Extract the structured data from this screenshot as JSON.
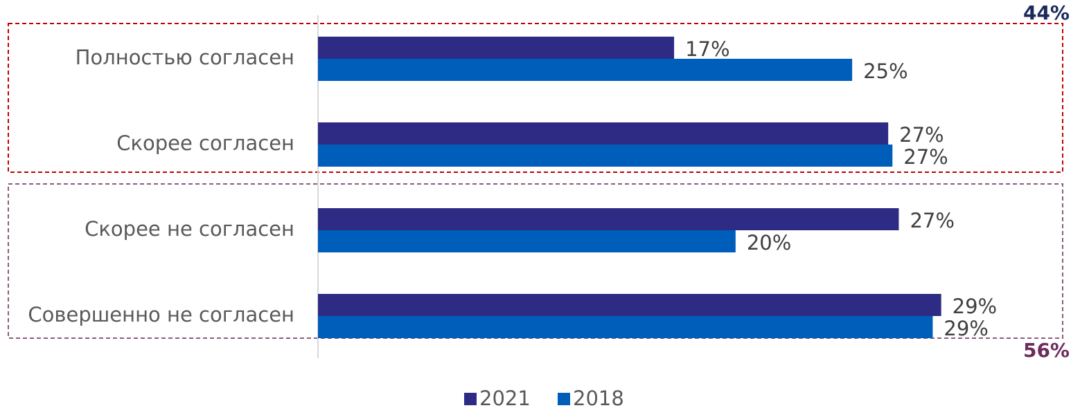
{
  "chart_data": {
    "type": "bar",
    "orientation": "horizontal",
    "categories": [
      "Полностью согласен",
      "Скорее согласен",
      "Скорее не согласен",
      "Совершенно не согласен"
    ],
    "series": [
      {
        "name": "2021",
        "color": "#2e2b84",
        "values": [
          16.8,
          26.9,
          27.4,
          29.4
        ],
        "value_labels": [
          "17%",
          "27%",
          "27%",
          "29%"
        ]
      },
      {
        "name": "2018",
        "color": "#005ebb",
        "values": [
          25.2,
          27.1,
          19.7,
          29.0
        ],
        "value_labels": [
          "25%",
          "27%",
          "20%",
          "29%"
        ]
      }
    ],
    "xlim": [
      0,
      35
    ],
    "annotations": [
      {
        "text": "44%",
        "color": "#1b2a5e"
      },
      {
        "text": "56%",
        "color": "#6e2c5e"
      }
    ],
    "legend": "bottom"
  }
}
